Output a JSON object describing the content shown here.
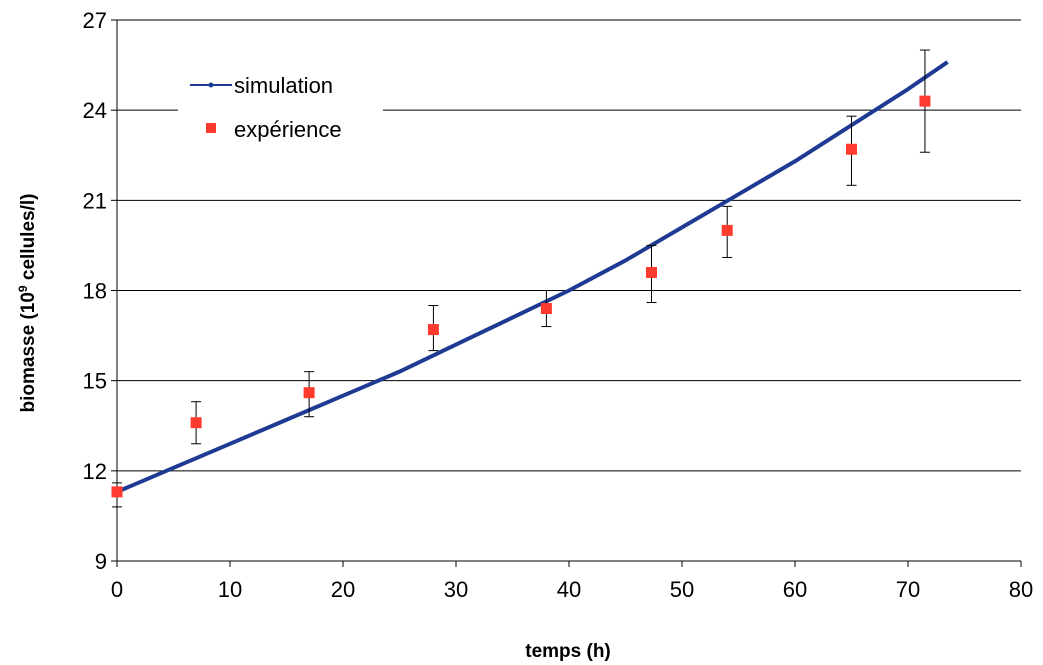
{
  "chart_data": {
    "type": "line",
    "xlabel": "temps (h)",
    "ylabel": {
      "prefix": "biomasse (10",
      "superscript": "9",
      "suffix": " cellules/l)"
    },
    "xlim": [
      0,
      80
    ],
    "ylim": [
      9,
      27
    ],
    "xticks": [
      0,
      10,
      20,
      30,
      40,
      50,
      60,
      70,
      80
    ],
    "yticks": [
      9,
      12,
      15,
      18,
      21,
      24,
      27
    ],
    "grid": "horizontal",
    "legend_position": "top-left",
    "colors": {
      "simulation": "#1f3a93",
      "experience": "#ff3b30",
      "grid": "#000000"
    },
    "series": [
      {
        "name": "simulation",
        "kind": "line",
        "x": [
          0,
          5,
          10,
          15,
          20,
          25,
          30,
          35,
          40,
          45,
          50,
          55,
          60,
          65,
          70,
          73.5
        ],
        "y": [
          11.3,
          12.1,
          12.9,
          13.7,
          14.5,
          15.3,
          16.2,
          17.1,
          18.0,
          19.0,
          20.1,
          21.2,
          22.3,
          23.5,
          24.7,
          25.6
        ]
      },
      {
        "name": "expérience",
        "kind": "scatter",
        "x": [
          0,
          7,
          17,
          28,
          38,
          47.3,
          54,
          65,
          71.5
        ],
        "y": [
          11.3,
          13.6,
          14.6,
          16.7,
          17.4,
          18.6,
          20.0,
          22.7,
          24.3
        ],
        "err_low": [
          10.8,
          12.9,
          13.8,
          16.0,
          16.8,
          17.6,
          19.1,
          21.5,
          22.6
        ],
        "err_high": [
          11.6,
          14.3,
          15.3,
          17.5,
          18.0,
          19.5,
          20.8,
          23.8,
          26.0
        ]
      }
    ]
  }
}
